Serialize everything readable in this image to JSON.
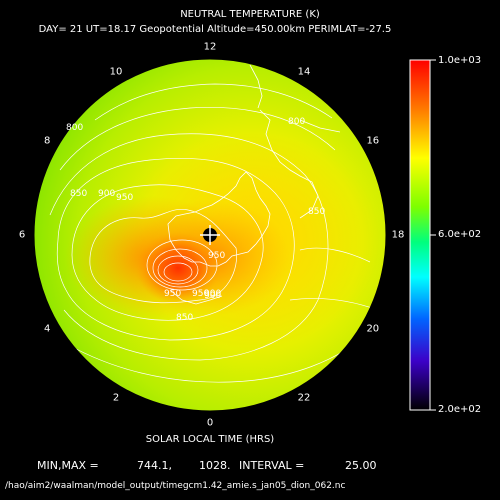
{
  "chart_data": {
    "type": "heatmap",
    "title": "NEUTRAL TEMPERATURE (K)",
    "subtitle": "DAY= 21 UT=18.17 Geopotential Altitude=450.00km PERIMLAT=-27.5",
    "xlabel": "SOLAR LOCAL TIME (HRS)",
    "hour_ticks": [
      "12",
      "14",
      "16",
      "18",
      "20",
      "22",
      "0",
      "2",
      "4",
      "6",
      "8",
      "10"
    ],
    "hour_values": [
      12,
      14,
      16,
      18,
      20,
      22,
      0,
      2,
      4,
      6,
      8,
      10
    ],
    "colorbar": {
      "min": 200,
      "max": 1000,
      "tick_labels": [
        "1.0e+03",
        "6.0e+02",
        "2.0e+02"
      ],
      "tick_values": [
        1000,
        600,
        200
      ]
    },
    "contour_labels": [
      "800",
      "850",
      "900",
      "950",
      "950",
      "900",
      "950",
      "850",
      "800",
      "850",
      "900",
      "950"
    ],
    "contour_interval": 25,
    "min": 744.1,
    "max": 1028.0,
    "stats_text": {
      "minmax_label": "MIN,MAX =",
      "min_text": "744.1,",
      "max_text": "1028.",
      "interval_label": "INTERVAL =",
      "interval_text": "25.00"
    },
    "filepath": "/hao/aim2/waalman/model_output/timegcm1.42_amie.s_jan05_dion_062.nc"
  },
  "colors": {
    "background": "#000000",
    "text": "#ffffff",
    "contour": "#ffffff",
    "coast": "#ffffff",
    "marker": "#000000"
  }
}
